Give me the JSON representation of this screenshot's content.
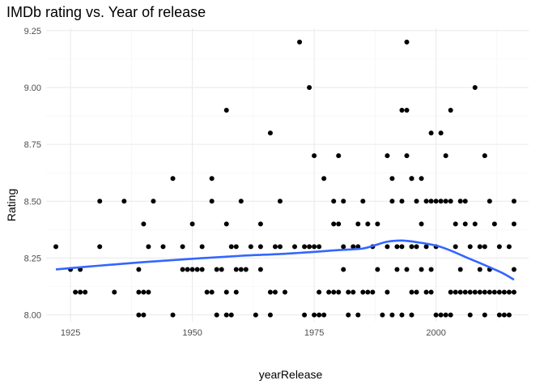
{
  "chart_data": {
    "type": "scatter",
    "title": "IMDb rating vs. Year of release",
    "xlabel": "yearRelease",
    "ylabel": "Rating",
    "xlim": [
      1920,
      2019
    ],
    "ylim": [
      7.97,
      9.26
    ],
    "xticks": [
      1925,
      1950,
      1975,
      2000
    ],
    "xtick_labels": [
      "1925",
      "1950",
      "1975",
      "2000"
    ],
    "yticks": [
      8.0,
      8.25,
      8.5,
      8.75,
      9.0,
      9.25
    ],
    "ytick_labels": [
      "8.00",
      "8.25",
      "8.50",
      "8.75",
      "9.00",
      "9.25"
    ],
    "grid": true,
    "point_color": "#000000",
    "smooth_color": "#3366FF",
    "points": [
      [
        1922,
        8.3
      ],
      [
        1925,
        8.2
      ],
      [
        1926,
        8.1
      ],
      [
        1927,
        8.2
      ],
      [
        1927,
        8.1
      ],
      [
        1928,
        8.1
      ],
      [
        1931,
        8.5
      ],
      [
        1931,
        8.3
      ],
      [
        1934,
        8.1
      ],
      [
        1936,
        8.5
      ],
      [
        1939,
        8.1
      ],
      [
        1939,
        8.2
      ],
      [
        1939,
        8.0
      ],
      [
        1940,
        8.4
      ],
      [
        1940,
        8.1
      ],
      [
        1940,
        8.0
      ],
      [
        1941,
        8.3
      ],
      [
        1941,
        8.1
      ],
      [
        1942,
        8.5
      ],
      [
        1944,
        8.3
      ],
      [
        1946,
        8.6
      ],
      [
        1946,
        8.0
      ],
      [
        1948,
        8.3
      ],
      [
        1948,
        8.2
      ],
      [
        1949,
        8.2
      ],
      [
        1950,
        8.2
      ],
      [
        1950,
        8.4
      ],
      [
        1951,
        8.2
      ],
      [
        1952,
        8.3
      ],
      [
        1952,
        8.2
      ],
      [
        1953,
        8.1
      ],
      [
        1954,
        8.6
      ],
      [
        1954,
        8.5
      ],
      [
        1954,
        8.1
      ],
      [
        1955,
        8.2
      ],
      [
        1955,
        8.0
      ],
      [
        1956,
        8.2
      ],
      [
        1957,
        8.9
      ],
      [
        1957,
        8.4
      ],
      [
        1957,
        8.1
      ],
      [
        1957,
        8.0
      ],
      [
        1958,
        8.3
      ],
      [
        1958,
        8.0
      ],
      [
        1959,
        8.3
      ],
      [
        1959,
        8.2
      ],
      [
        1959,
        8.1
      ],
      [
        1960,
        8.5
      ],
      [
        1960,
        8.2
      ],
      [
        1961,
        8.2
      ],
      [
        1962,
        8.3
      ],
      [
        1963,
        8.0
      ],
      [
        1964,
        8.4
      ],
      [
        1964,
        8.2
      ],
      [
        1964,
        8.3
      ],
      [
        1966,
        8.8
      ],
      [
        1966,
        8.1
      ],
      [
        1966,
        8.0
      ],
      [
        1967,
        8.3
      ],
      [
        1967,
        8.1
      ],
      [
        1968,
        8.5
      ],
      [
        1968,
        8.3
      ],
      [
        1969,
        8.1
      ],
      [
        1971,
        8.3
      ],
      [
        1972,
        9.2
      ],
      [
        1973,
        8.3
      ],
      [
        1973,
        8.0
      ],
      [
        1974,
        9.0
      ],
      [
        1974,
        8.3
      ],
      [
        1975,
        8.7
      ],
      [
        1975,
        8.3
      ],
      [
        1975,
        8.0
      ],
      [
        1976,
        8.3
      ],
      [
        1976,
        8.1
      ],
      [
        1976,
        8.0
      ],
      [
        1977,
        8.6
      ],
      [
        1977,
        8.0
      ],
      [
        1978,
        8.1
      ],
      [
        1979,
        8.5
      ],
      [
        1979,
        8.4
      ],
      [
        1979,
        8.1
      ],
      [
        1980,
        8.7
      ],
      [
        1980,
        8.4
      ],
      [
        1980,
        8.1
      ],
      [
        1981,
        8.5
      ],
      [
        1981,
        8.3
      ],
      [
        1981,
        8.2
      ],
      [
        1982,
        8.1
      ],
      [
        1982,
        8.0
      ],
      [
        1983,
        8.3
      ],
      [
        1983,
        8.1
      ],
      [
        1984,
        8.4
      ],
      [
        1984,
        8.0
      ],
      [
        1984,
        8.3
      ],
      [
        1985,
        8.5
      ],
      [
        1985,
        8.1
      ],
      [
        1986,
        8.4
      ],
      [
        1986,
        8.1
      ],
      [
        1987,
        8.3
      ],
      [
        1987,
        8.1
      ],
      [
        1988,
        8.4
      ],
      [
        1988,
        8.2
      ],
      [
        1989,
        8.0
      ],
      [
        1990,
        8.7
      ],
      [
        1990,
        8.3
      ],
      [
        1990,
        8.1
      ],
      [
        1991,
        8.6
      ],
      [
        1991,
        8.5
      ],
      [
        1991,
        8.0
      ],
      [
        1992,
        8.3
      ],
      [
        1992,
        8.2
      ],
      [
        1993,
        8.9
      ],
      [
        1993,
        8.5
      ],
      [
        1993,
        8.3
      ],
      [
        1993,
        8.0
      ],
      [
        1994,
        9.2
      ],
      [
        1994,
        8.9
      ],
      [
        1994,
        8.7
      ],
      [
        1994,
        8.2
      ],
      [
        1995,
        8.6
      ],
      [
        1995,
        8.6
      ],
      [
        1995,
        8.3
      ],
      [
        1995,
        8.1
      ],
      [
        1995,
        8.0
      ],
      [
        1996,
        8.5
      ],
      [
        1996,
        8.1
      ],
      [
        1996,
        8.3
      ],
      [
        1997,
        8.6
      ],
      [
        1997,
        8.4
      ],
      [
        1997,
        8.2
      ],
      [
        1998,
        8.5
      ],
      [
        1998,
        8.3
      ],
      [
        1998,
        8.1
      ],
      [
        1999,
        8.8
      ],
      [
        1999,
        8.5
      ],
      [
        1999,
        8.2
      ],
      [
        1999,
        8.1
      ],
      [
        2000,
        8.5
      ],
      [
        2000,
        8.3
      ],
      [
        2000,
        8.0
      ],
      [
        2001,
        8.8
      ],
      [
        2001,
        8.5
      ],
      [
        2001,
        8.0
      ],
      [
        2002,
        8.7
      ],
      [
        2002,
        8.5
      ],
      [
        2002,
        8.0
      ],
      [
        2003,
        8.9
      ],
      [
        2003,
        8.5
      ],
      [
        2003,
        8.1
      ],
      [
        2003,
        8.0
      ],
      [
        2004,
        8.4
      ],
      [
        2004,
        8.3
      ],
      [
        2004,
        8.1
      ],
      [
        2005,
        8.5
      ],
      [
        2005,
        8.2
      ],
      [
        2005,
        8.1
      ],
      [
        2006,
        8.4
      ],
      [
        2006,
        8.5
      ],
      [
        2006,
        8.1
      ],
      [
        2007,
        8.3
      ],
      [
        2007,
        8.1
      ],
      [
        2007,
        8.0
      ],
      [
        2008,
        9.0
      ],
      [
        2008,
        8.4
      ],
      [
        2008,
        8.1
      ],
      [
        2009,
        8.3
      ],
      [
        2009,
        8.2
      ],
      [
        2009,
        8.1
      ],
      [
        2010,
        8.7
      ],
      [
        2010,
        8.3
      ],
      [
        2010,
        8.1
      ],
      [
        2010,
        8.0
      ],
      [
        2011,
        8.5
      ],
      [
        2011,
        8.2
      ],
      [
        2011,
        8.1
      ],
      [
        2012,
        8.4
      ],
      [
        2012,
        8.1
      ],
      [
        2013,
        8.3
      ],
      [
        2013,
        8.1
      ],
      [
        2013,
        8.0
      ],
      [
        2014,
        8.1
      ],
      [
        2014,
        8.0
      ],
      [
        2015,
        8.3
      ],
      [
        2015,
        8.1
      ],
      [
        2015,
        8.0
      ],
      [
        2016,
        8.5
      ],
      [
        2016,
        8.4
      ],
      [
        2016,
        8.2
      ],
      [
        2016,
        8.1
      ]
    ],
    "smooth_line": [
      [
        1922,
        8.2
      ],
      [
        1930,
        8.215
      ],
      [
        1940,
        8.232
      ],
      [
        1950,
        8.247
      ],
      [
        1960,
        8.26
      ],
      [
        1970,
        8.27
      ],
      [
        1980,
        8.285
      ],
      [
        1985,
        8.292
      ],
      [
        1988,
        8.31
      ],
      [
        1990,
        8.322
      ],
      [
        1993,
        8.327
      ],
      [
        1996,
        8.32
      ],
      [
        2000,
        8.305
      ],
      [
        2003,
        8.283
      ],
      [
        2006,
        8.255
      ],
      [
        2009,
        8.228
      ],
      [
        2012,
        8.2
      ],
      [
        2014,
        8.18
      ],
      [
        2016,
        8.155
      ]
    ]
  }
}
